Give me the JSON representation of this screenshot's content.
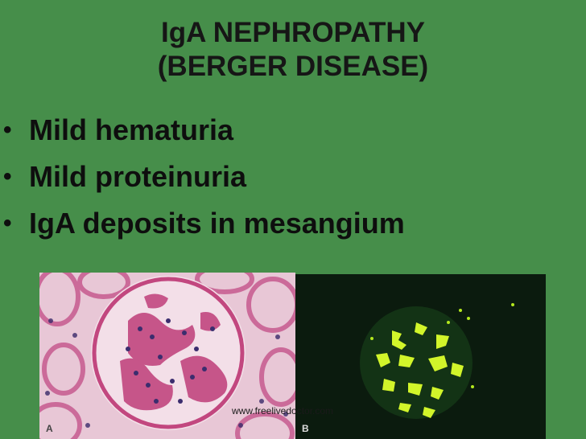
{
  "slide": {
    "title_line1": "IgA NEPHROPATHY",
    "title_line2": "(BERGER DISEASE)",
    "bullet_glyph": "•",
    "bullets": [
      "Mild hematuria",
      "Mild proteinuria",
      "IgA deposits in mesangium"
    ],
    "figure": {
      "panel_a_label": "A",
      "panel_b_label": "B",
      "watermark": "www.freelivedoctor.com"
    },
    "colors": {
      "background": "#468e4a",
      "text": "#111111",
      "stain_pink": "#c2477f",
      "fluorescence": "#d2f52a"
    }
  }
}
